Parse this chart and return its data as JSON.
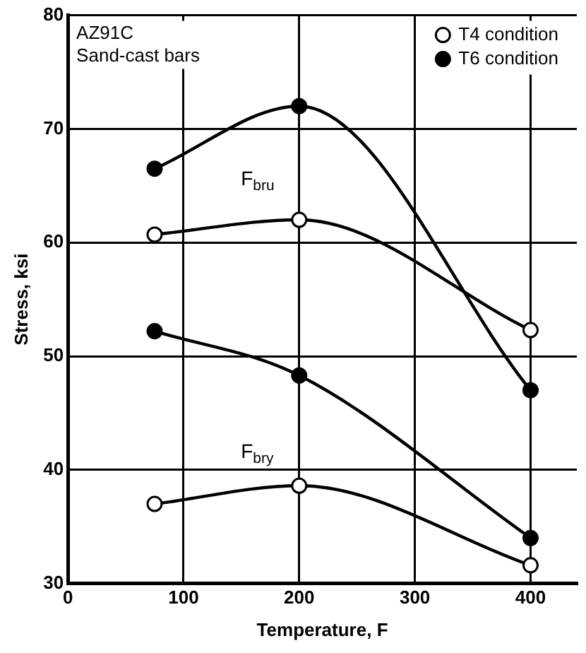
{
  "chart_data": {
    "type": "line",
    "xlabel": "Temperature, F",
    "ylabel": "Stress, ksi",
    "x": [
      75,
      200,
      400
    ],
    "series": [
      {
        "name": "T4 condition",
        "color": "#ffffff",
        "values": [
          60.7,
          62,
          52.3
        ]
      },
      {
        "name": "T6 condition",
        "color": "#000000",
        "values": [
          66.5,
          72,
          47
        ]
      },
      {
        "color": "#ffffff",
        "values": [
          37,
          38.6,
          31.6
        ]
      },
      {
        "color": "#000000",
        "values": [
          52.2,
          48.3,
          34
        ]
      }
    ],
    "xlim": [
      0,
      440
    ],
    "xticks": [
      0,
      100,
      200,
      300,
      400
    ],
    "ylim": [
      30,
      80
    ],
    "yticks": [
      30,
      40,
      50,
      60,
      70,
      80
    ],
    "grid": true,
    "legend": "top right",
    "marker": "circle",
    "line_style": "solid",
    "annotations": [
      "AZ91C\nSand-cast bars",
      "F$_{bru}$",
      "F$_{bry}$"
    ]
  }
}
